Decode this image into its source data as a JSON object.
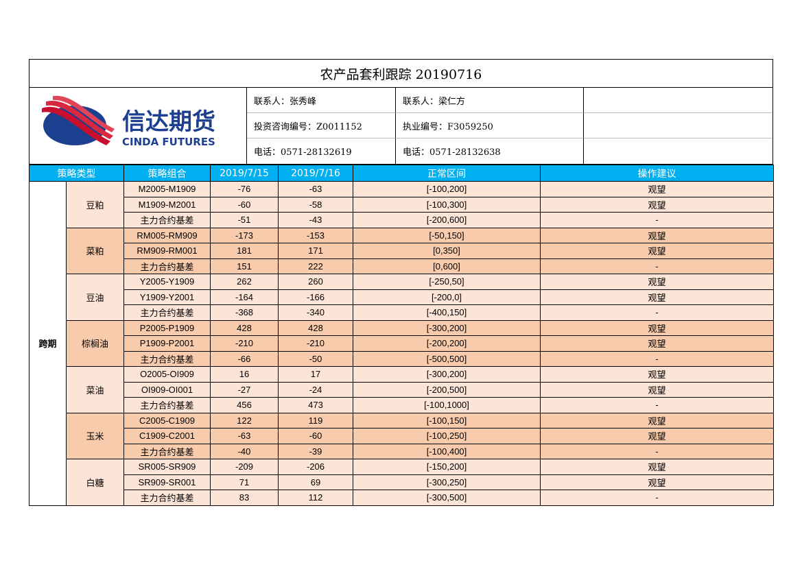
{
  "title": "农产品套利跟踪 20190716",
  "logo": {
    "cn": "信达期货",
    "en": "CINDA FUTURES"
  },
  "contacts": {
    "row1": [
      "联系人：张秀峰",
      "联系人：梁仁方",
      ""
    ],
    "row2": [
      "投资咨询编号：Z0011152",
      "执业编号：F3059250",
      ""
    ],
    "row3": [
      "电话：0571-28132619",
      "电话：0571-28132638",
      ""
    ]
  },
  "headers": [
    "策略类型",
    "策略组合",
    "2019/7/15",
    "2019/7/16",
    "正常区间",
    "操作建议"
  ],
  "strategy_type": "跨期",
  "groups": [
    {
      "product": "豆粕",
      "shade": "light",
      "rows": [
        [
          "M2005-M1909",
          "-76",
          "-63",
          "[-100,200]",
          "观望"
        ],
        [
          "M1909-M2001",
          "-60",
          "-58",
          "[-100,300]",
          "观望"
        ],
        [
          "主力合约基差",
          "-51",
          "-43",
          "[-200,600]",
          "-"
        ]
      ]
    },
    {
      "product": "菜粕",
      "shade": "dark",
      "rows": [
        [
          "RM005-RM909",
          "-173",
          "-153",
          "[-50,150]",
          "观望"
        ],
        [
          "RM909-RM001",
          "181",
          "171",
          "[0,350]",
          "观望"
        ],
        [
          "主力合约基差",
          "151",
          "222",
          "[0,600]",
          "-"
        ]
      ]
    },
    {
      "product": "豆油",
      "shade": "light",
      "rows": [
        [
          "Y2005-Y1909",
          "262",
          "260",
          "[-250,50]",
          "观望"
        ],
        [
          "Y1909-Y2001",
          "-164",
          "-166",
          "[-200,0]",
          "观望"
        ],
        [
          "主力合约基差",
          "-368",
          "-340",
          "[-400,150]",
          "-"
        ]
      ]
    },
    {
      "product": "棕榈油",
      "shade": "dark",
      "rows": [
        [
          "P2005-P1909",
          "428",
          "428",
          "[-300,200]",
          "观望"
        ],
        [
          "P1909-P2001",
          "-210",
          "-210",
          "[-200,200]",
          "观望"
        ],
        [
          "主力合约基差",
          "-66",
          "-50",
          "[-500,500]",
          "-"
        ]
      ]
    },
    {
      "product": "菜油",
      "shade": "light",
      "rows": [
        [
          "O2005-OI909",
          "16",
          "17",
          "[-300,200]",
          "观望"
        ],
        [
          "OI909-OI001",
          "-27",
          "-24",
          "[-200,500]",
          "观望"
        ],
        [
          "主力合约基差",
          "456",
          "473",
          "[-100,1000]",
          "-"
        ]
      ]
    },
    {
      "product": "玉米",
      "shade": "dark",
      "rows": [
        [
          "C2005-C1909",
          "122",
          "119",
          "[-100,150]",
          "观望"
        ],
        [
          "C1909-C2001",
          "-63",
          "-60",
          "[-100,250]",
          "观望"
        ],
        [
          "主力合约基差",
          "-40",
          "-39",
          "[-100,400]",
          "-"
        ]
      ]
    },
    {
      "product": "白糖",
      "shade": "light",
      "rows": [
        [
          "SR005-SR909",
          "-209",
          "-206",
          "[-150,200]",
          "观望"
        ],
        [
          "SR909-SR001",
          "71",
          "69",
          "[-300,250]",
          "观望"
        ],
        [
          "主力合约基差",
          "83",
          "112",
          "[-300,500]",
          "-"
        ]
      ]
    }
  ],
  "colors": {
    "header_bg": "#00b0f0",
    "light_row": "#fce4d6",
    "dark_row": "#f8cbad",
    "logo_red": "#c8102e",
    "logo_blue": "#1d3f8f"
  }
}
